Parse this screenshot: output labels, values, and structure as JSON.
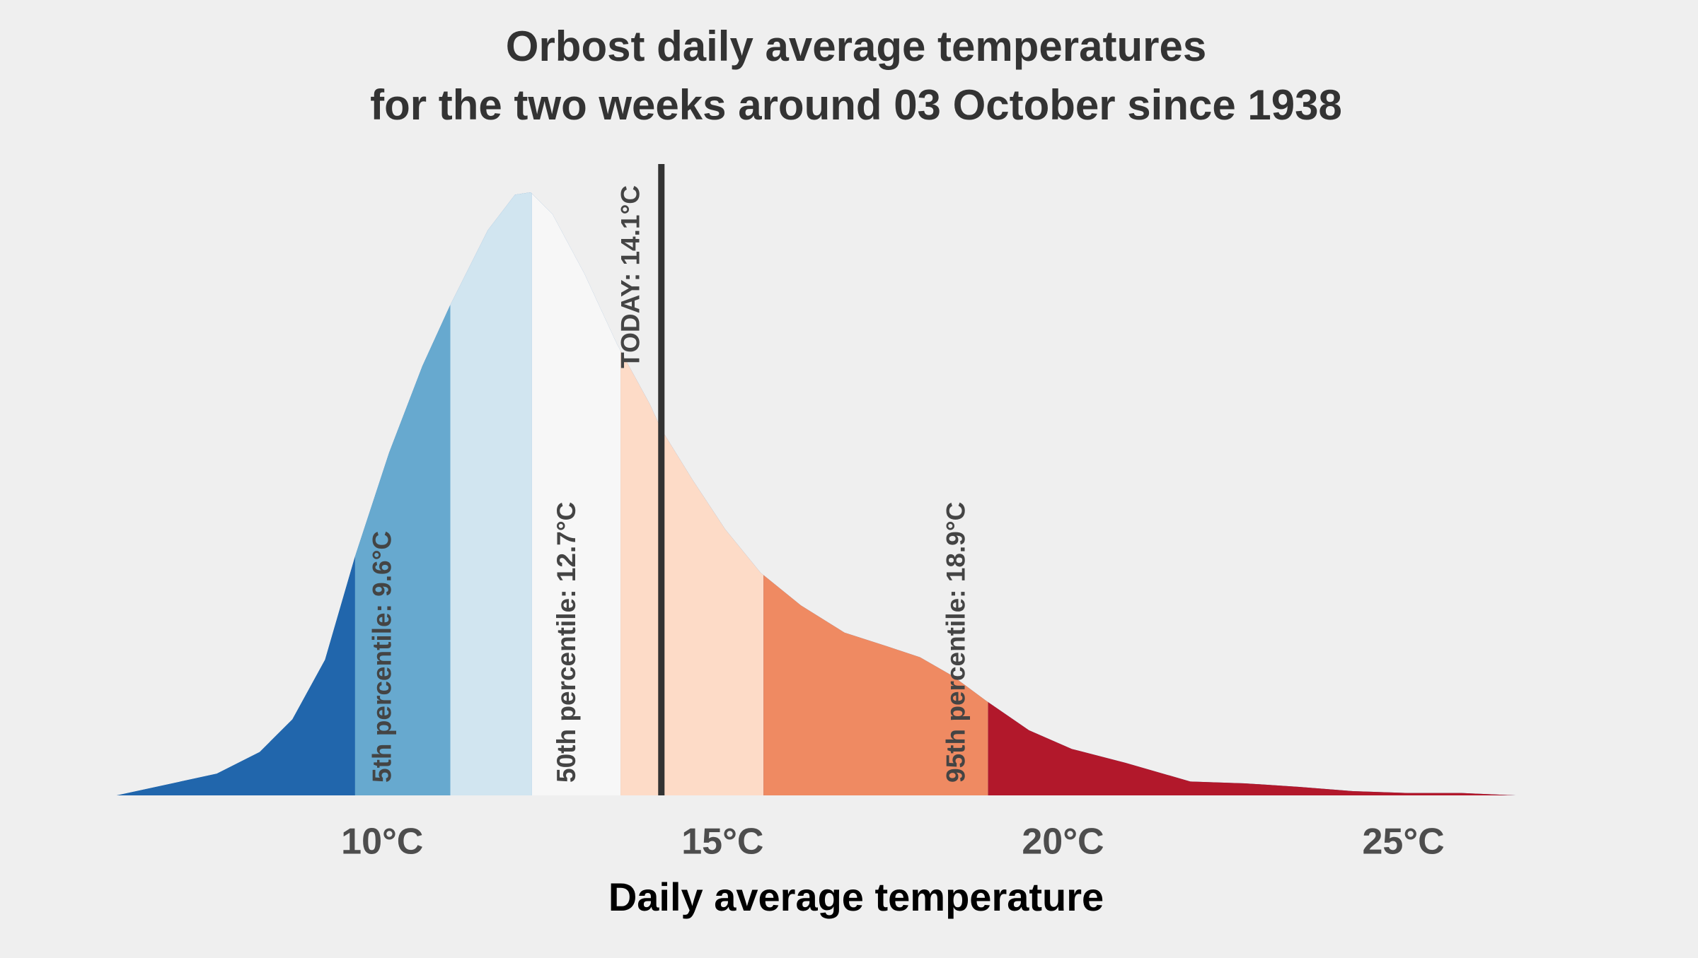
{
  "chart_data": {
    "type": "density",
    "title": "Orbost daily average temperatures",
    "subtitle": "for the two weeks around 03 October since 1938",
    "x_label": "Daily average temperature",
    "x": [
      6.1,
      7.57,
      8.2,
      8.68,
      9.16,
      9.6,
      10.1,
      10.59,
      10.99,
      11.55,
      11.95,
      12.18,
      12.5,
      12.97,
      13.45,
      13.93,
      14.1,
      14.56,
      15.04,
      15.56,
      16.15,
      16.79,
      17.42,
      17.9,
      18.38,
      18.87,
      19.5,
      20.13,
      20.92,
      21.87,
      22.67,
      23.47,
      24.26,
      25.06,
      25.85,
      26.65,
      27.8
    ],
    "values": [
      0,
      0.036,
      0.072,
      0.126,
      0.225,
      0.396,
      0.568,
      0.712,
      0.811,
      0.937,
      0.996,
      1.0,
      0.964,
      0.865,
      0.748,
      0.649,
      0.607,
      0.523,
      0.441,
      0.369,
      0.315,
      0.27,
      0.247,
      0.229,
      0.198,
      0.157,
      0.108,
      0.077,
      0.054,
      0.023,
      0.02,
      0.014,
      0.007,
      0.004,
      0.004,
      0,
      0
    ],
    "xlim": [
      6.1,
      27.8
    ],
    "ylim": [
      0,
      1
    ],
    "xticks": [
      {
        "value": 10,
        "label": "10°C"
      },
      {
        "value": 15,
        "label": "15°C"
      },
      {
        "value": 20,
        "label": "20°C"
      },
      {
        "value": 25,
        "label": "25°C"
      }
    ],
    "band_edges": [
      9.6,
      11.0,
      12.2,
      13.5,
      15.6,
      18.9
    ],
    "band_colors": [
      "#2166ac",
      "#67a9cf",
      "#d1e5f0",
      "#f7f7f7",
      "#fddbc7",
      "#ef8a62",
      "#b2182b"
    ],
    "annotations": [
      {
        "text": "5th percentile:  9.6°C",
        "x": 9.6
      },
      {
        "text": "50th percentile: 12.7°C",
        "x": 12.7
      },
      {
        "text": "95th percentile:  18.9°C",
        "x": 18.9
      }
    ],
    "today": {
      "text": "TODAY:  14.1°C",
      "x": 14.1,
      "color": "#333333"
    }
  }
}
